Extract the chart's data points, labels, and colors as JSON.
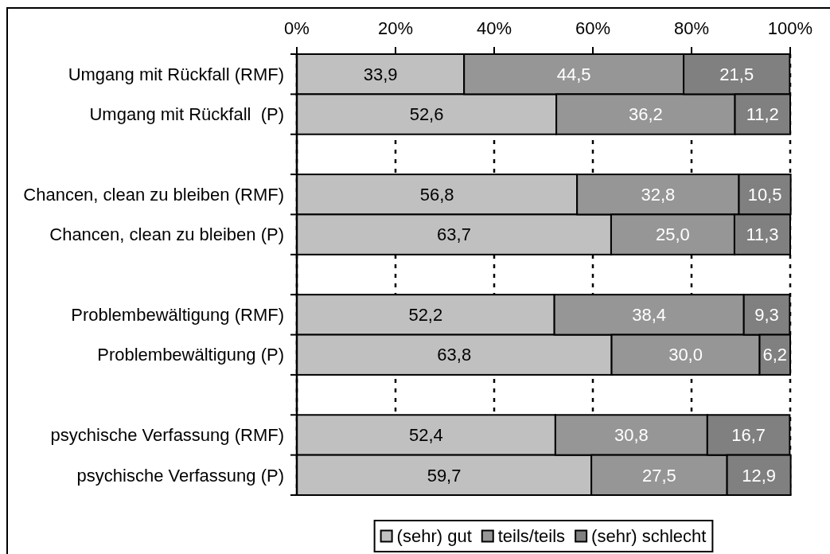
{
  "chart_data": {
    "type": "bar",
    "orientation": "horizontal",
    "stacked": true,
    "categories": [
      "Umgang mit Rückfall (RMF)",
      "Umgang mit Rückfall  (P)",
      null,
      "Chancen, clean zu bleiben (RMF)",
      "Chancen, clean zu bleiben (P)",
      null,
      "Problembewältigung (RMF)",
      "Problembewältigung (P)",
      null,
      "psychische Verfassung (RMF)",
      "psychische Verfassung (P)"
    ],
    "series": [
      {
        "name": "(sehr) gut",
        "color": "#c0c0c0",
        "values": [
          33.9,
          52.6,
          null,
          56.8,
          63.7,
          null,
          52.2,
          63.8,
          null,
          52.4,
          59.7
        ],
        "value_labels": [
          "33,9",
          "52,6",
          null,
          "56,8",
          "63,7",
          null,
          "52,2",
          "63,8",
          null,
          "52,4",
          "59,7"
        ]
      },
      {
        "name": "teils/teils",
        "color": "#969696",
        "values": [
          44.5,
          36.2,
          null,
          32.8,
          25.0,
          null,
          38.4,
          30.0,
          null,
          30.8,
          27.5
        ],
        "value_labels": [
          "44,5",
          "36,2",
          null,
          "32,8",
          "25,0",
          null,
          "38,4",
          "30,0",
          null,
          "30,8",
          "27,5"
        ]
      },
      {
        "name": "(sehr) schlecht",
        "color": "#808080",
        "values": [
          21.5,
          11.2,
          null,
          10.5,
          11.3,
          null,
          9.3,
          6.2,
          null,
          16.7,
          12.9
        ],
        "value_labels": [
          "21,5",
          "11,2",
          null,
          "10,5",
          "11,3",
          null,
          "9,3",
          "6,2",
          null,
          "16,7",
          "12,9"
        ]
      }
    ],
    "xlim": [
      0,
      100
    ],
    "xticks": [
      {
        "value": 0,
        "label": "0%"
      },
      {
        "value": 20,
        "label": "20%"
      },
      {
        "value": 40,
        "label": "40%"
      },
      {
        "value": 60,
        "label": "60%"
      },
      {
        "value": 80,
        "label": "80%"
      },
      {
        "value": 100,
        "label": "100%"
      }
    ],
    "grid": "x",
    "legend": "bottom"
  }
}
